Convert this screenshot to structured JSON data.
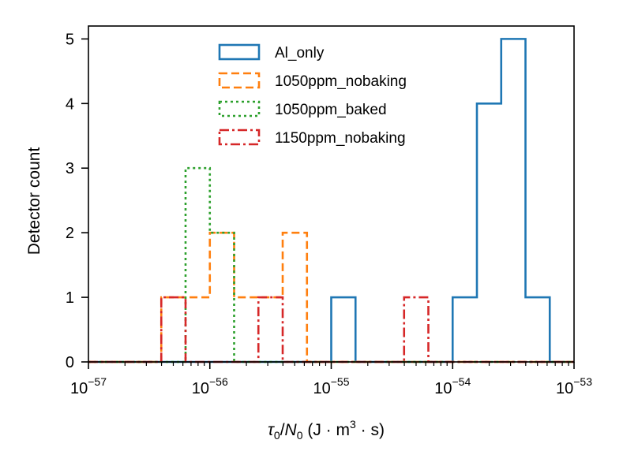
{
  "chart_data": {
    "type": "histogram",
    "title": "",
    "xlabel": {
      "base": "τ",
      "sub1": "0",
      "slash": "/",
      "base2": "N",
      "sub2": "0",
      "units": " (J · m",
      "sup": "3",
      "units_end": " · s)"
    },
    "ylabel": "Detector count",
    "x_scale": "log",
    "xlim_exponent": [
      -57,
      -53
    ],
    "ylim": [
      0,
      5.2
    ],
    "y_ticks": [
      "0",
      "1",
      "2",
      "3",
      "4",
      "5"
    ],
    "x_ticks": [
      {
        "exp": -57,
        "base": "10",
        "sup": "−57"
      },
      {
        "exp": -56,
        "base": "10",
        "sup": "−56"
      },
      {
        "exp": -55,
        "base": "10",
        "sup": "−55"
      },
      {
        "exp": -54,
        "base": "10",
        "sup": "−54"
      },
      {
        "exp": -53,
        "base": "10",
        "sup": "−53"
      }
    ],
    "bin_edges_exponent": [
      -57.0,
      -56.8,
      -56.6,
      -56.4,
      -56.2,
      -56.0,
      -55.8,
      -55.6,
      -55.4,
      -55.2,
      -55.0,
      -54.8,
      -54.6,
      -54.4,
      -54.2,
      -54.0,
      -53.8,
      -53.6,
      -53.4,
      -53.2,
      -53.0
    ],
    "series": [
      {
        "name": "Al_only",
        "color": "#1f77b4",
        "dash": "solid",
        "counts": [
          0,
          0,
          0,
          0,
          0,
          0,
          0,
          0,
          0,
          0,
          1,
          0,
          0,
          0,
          0,
          1,
          4,
          5,
          1,
          0
        ]
      },
      {
        "name": "1050ppm_nobaking",
        "color": "#ff7f0e",
        "dash": "dashed",
        "counts": [
          0,
          0,
          0,
          1,
          1,
          2,
          1,
          1,
          2,
          0,
          0,
          0,
          0,
          0,
          0,
          0,
          0,
          0,
          0,
          0
        ]
      },
      {
        "name": "1050ppm_baked",
        "color": "#2ca02c",
        "dash": "dotted",
        "counts": [
          0,
          0,
          0,
          0,
          3,
          2,
          0,
          0,
          0,
          0,
          0,
          0,
          0,
          0,
          0,
          0,
          0,
          0,
          0,
          0
        ]
      },
      {
        "name": "1150ppm_nobaking",
        "color": "#d62728",
        "dash": "dashdot",
        "counts": [
          0,
          0,
          0,
          1,
          0,
          0,
          0,
          1,
          0,
          0,
          0,
          0,
          0,
          1,
          0,
          0,
          0,
          0,
          0,
          0
        ]
      }
    ],
    "legend_position": "upper-center"
  }
}
